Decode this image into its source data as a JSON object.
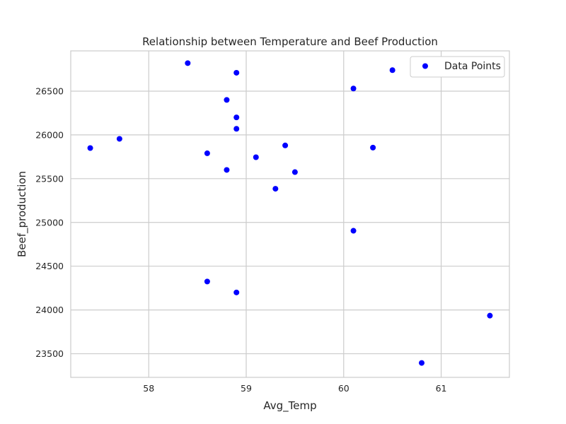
{
  "chart_data": {
    "type": "scatter",
    "title": "Relationship between Temperature and Beef Production",
    "xlabel": "Avg_Temp",
    "ylabel": "Beef_production",
    "xlim": [
      57.2,
      61.7
    ],
    "ylim": [
      23230,
      26960
    ],
    "xticks": [
      58,
      59,
      60,
      61
    ],
    "yticks": [
      23500,
      24000,
      24500,
      25000,
      25500,
      26000,
      26500
    ],
    "grid": true,
    "legend_position": "top-right",
    "series": [
      {
        "name": "Data Points",
        "color": "#0000ff",
        "points": [
          {
            "x": 57.4,
            "y": 25850
          },
          {
            "x": 57.7,
            "y": 25955
          },
          {
            "x": 58.4,
            "y": 26820
          },
          {
            "x": 58.6,
            "y": 25790
          },
          {
            "x": 58.6,
            "y": 24325
          },
          {
            "x": 58.8,
            "y": 26400
          },
          {
            "x": 58.8,
            "y": 25600
          },
          {
            "x": 58.9,
            "y": 26710
          },
          {
            "x": 58.9,
            "y": 26200
          },
          {
            "x": 58.9,
            "y": 26070
          },
          {
            "x": 58.9,
            "y": 24200
          },
          {
            "x": 59.1,
            "y": 25745
          },
          {
            "x": 59.3,
            "y": 25385
          },
          {
            "x": 59.4,
            "y": 25880
          },
          {
            "x": 59.5,
            "y": 25575
          },
          {
            "x": 60.1,
            "y": 26530
          },
          {
            "x": 60.1,
            "y": 24905
          },
          {
            "x": 60.3,
            "y": 25855
          },
          {
            "x": 60.5,
            "y": 26740
          },
          {
            "x": 60.8,
            "y": 23395
          },
          {
            "x": 61.5,
            "y": 23935
          }
        ]
      }
    ]
  }
}
